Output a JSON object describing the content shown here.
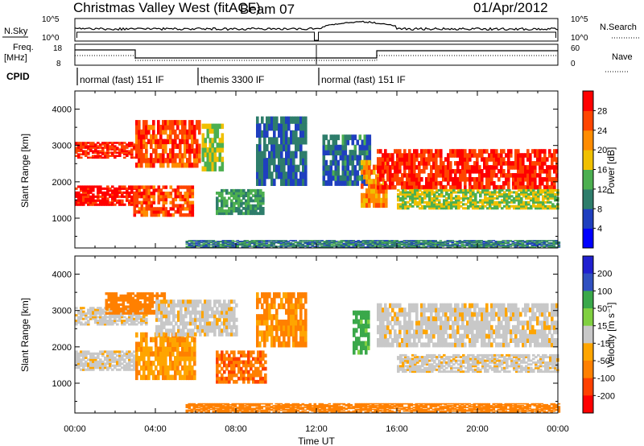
{
  "header": {
    "radar_title": "Christmas Valley West (fitACF)",
    "beam_label": "Beam 07",
    "date_label": "01/Apr/2012"
  },
  "strips": {
    "nsky_label": "N.Sky",
    "nsky_ticks": [
      "10^5",
      "10^0"
    ],
    "nsearch_label": "N.Search",
    "nsearch_ticks": [
      "10^5",
      "10^0"
    ],
    "freq_label": "Freq.",
    "freq_unit": "[MHz]",
    "freq_ticks": [
      "18",
      "8"
    ],
    "nave_label": "Nave",
    "nave_ticks": [
      "60",
      "0"
    ],
    "cpid_label": "CPID",
    "cpid_segments": [
      {
        "label": "normal (fast) 151 IF",
        "start_h": 0,
        "end_h": 6
      },
      {
        "label": "themis 3300 IF",
        "start_h": 6,
        "end_h": 12
      },
      {
        "label": "normal (fast) 151 IF",
        "start_h": 12,
        "end_h": 24
      }
    ]
  },
  "x_axis": {
    "title": "Time UT",
    "ticks": [
      "00:00",
      "04:00",
      "08:00",
      "12:00",
      "16:00",
      "20:00",
      "00:00"
    ]
  },
  "colors": {
    "power_scale": [
      "#0000ff",
      "#1f3fbf",
      "#2e7d6b",
      "#4caf50",
      "#f0c000",
      "#ff8c00",
      "#ff4500",
      "#ff0000"
    ],
    "velocity_scale": [
      "#ff0000",
      "#ff4000",
      "#ff8000",
      "#ffa500",
      "#c8c8c8",
      "#80d040",
      "#3aa84a",
      "#3050c0",
      "#2020d0"
    ]
  },
  "chart_data": [
    {
      "type": "heatmap",
      "panel": "power",
      "ylabel": "Slant Range [km]",
      "xlim": [
        0,
        24
      ],
      "ylim": [
        180,
        4500
      ],
      "yticks": [
        "1000",
        "2000",
        "3000",
        "4000"
      ],
      "colorbar_label": "Power [dB]",
      "colorbar_ticks": [
        "4",
        "8",
        "12",
        "16",
        "20",
        "24",
        "28"
      ],
      "regions": [
        {
          "t0": 0.0,
          "t1": 2.9,
          "r0": 1350,
          "r1": 1900,
          "level": 28
        },
        {
          "t0": 0.0,
          "t1": 3.6,
          "r0": 2650,
          "r1": 3100,
          "level": 26
        },
        {
          "t0": 2.9,
          "t1": 5.8,
          "r0": 1050,
          "r1": 1900,
          "level": 24
        },
        {
          "t0": 3.0,
          "t1": 6.2,
          "r0": 2400,
          "r1": 3700,
          "level": 24
        },
        {
          "t0": 6.3,
          "t1": 7.3,
          "r0": 2300,
          "r1": 3600,
          "level": 14
        },
        {
          "t0": 7.0,
          "t1": 9.3,
          "r0": 1100,
          "r1": 1800,
          "level": 10
        },
        {
          "t0": 9.0,
          "t1": 11.5,
          "r0": 1900,
          "r1": 3800,
          "level": 6
        },
        {
          "t0": 12.3,
          "t1": 14.6,
          "r0": 1900,
          "r1": 3300,
          "level": 7
        },
        {
          "t0": 14.2,
          "t1": 15.5,
          "r0": 1300,
          "r1": 2600,
          "level": 20
        },
        {
          "t0": 15.0,
          "t1": 24.0,
          "r0": 1800,
          "r1": 2900,
          "level": 26
        },
        {
          "t0": 16.0,
          "t1": 24.0,
          "r0": 1250,
          "r1": 1800,
          "level": 14
        },
        {
          "t0": 5.5,
          "t1": 24.0,
          "r0": 200,
          "r1": 400,
          "level": 8
        }
      ]
    },
    {
      "type": "heatmap",
      "panel": "velocity",
      "ylabel": "Slant Range [km]",
      "xlim": [
        0,
        24
      ],
      "ylim": [
        180,
        4500
      ],
      "yticks": [
        "1000",
        "2000",
        "3000",
        "4000"
      ],
      "colorbar_label": "Velocity [m s⁻¹]",
      "colorbar_ticks": [
        "200",
        "100",
        "50",
        "15",
        "-15",
        "-50",
        "-100",
        "-200"
      ],
      "regions": [
        {
          "t0": 0.0,
          "t1": 3.0,
          "r0": 1350,
          "r1": 1900,
          "level": 0
        },
        {
          "t0": 0.0,
          "t1": 3.5,
          "r0": 2600,
          "r1": 3100,
          "level": 0
        },
        {
          "t0": 1.5,
          "t1": 4.5,
          "r0": 2900,
          "r1": 3500,
          "level": -60
        },
        {
          "t0": 3.0,
          "t1": 6.0,
          "r0": 1100,
          "r1": 2400,
          "level": -30
        },
        {
          "t0": 4.0,
          "t1": 8.0,
          "r0": 2300,
          "r1": 3300,
          "level": 0
        },
        {
          "t0": 7.0,
          "t1": 9.5,
          "r0": 1000,
          "r1": 1900,
          "level": -70
        },
        {
          "t0": 9.0,
          "t1": 11.5,
          "r0": 2000,
          "r1": 3500,
          "level": -40
        },
        {
          "t0": 13.8,
          "t1": 14.6,
          "r0": 1800,
          "r1": 3000,
          "level": 60
        },
        {
          "t0": 15.0,
          "t1": 24.0,
          "r0": 2000,
          "r1": 3200,
          "level": 0
        },
        {
          "t0": 16.0,
          "t1": 24.0,
          "r0": 1300,
          "r1": 1800,
          "level": 0
        },
        {
          "t0": 5.5,
          "t1": 24.0,
          "r0": 200,
          "r1": 450,
          "level": -60
        }
      ]
    }
  ]
}
